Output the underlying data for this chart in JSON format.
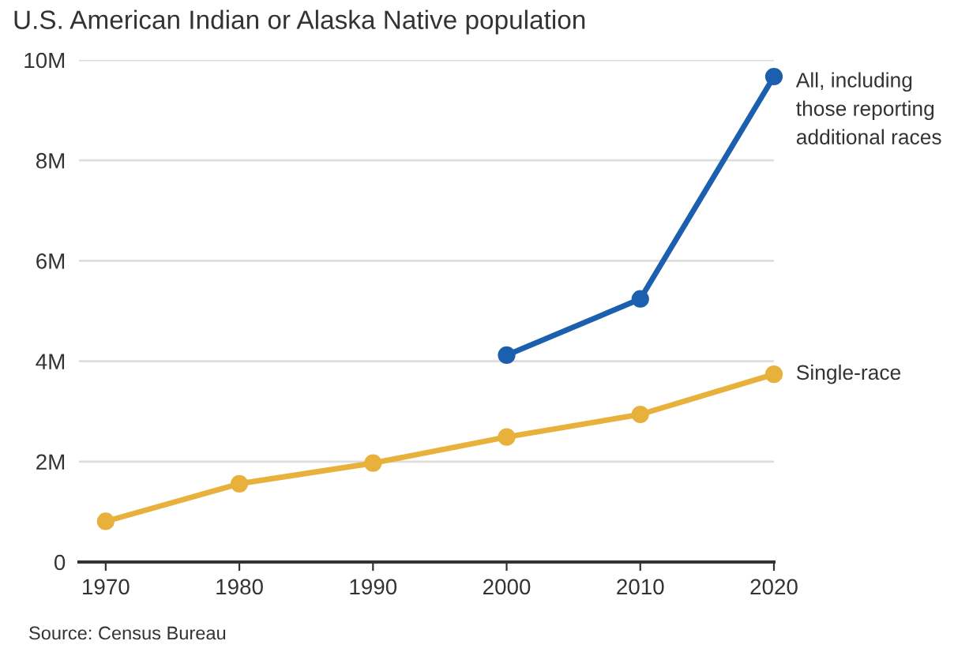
{
  "chart_data": {
    "type": "line",
    "title": "U.S. American Indian or Alaska Native population",
    "x": [
      1970,
      1980,
      1990,
      2000,
      2010,
      2020
    ],
    "series": [
      {
        "name": "All, including those reporting additional races",
        "color": "#1c5fae",
        "values": [
          null,
          null,
          null,
          4.12,
          5.24,
          9.67
        ]
      },
      {
        "name": "Single-race",
        "color": "#e8b13c",
        "values": [
          0.81,
          1.56,
          1.97,
          2.49,
          2.94,
          3.74
        ]
      }
    ],
    "xlim": [
      1968,
      2020
    ],
    "xticks": [
      1970,
      1980,
      1990,
      2000,
      2010,
      2020
    ],
    "ylim": [
      0,
      10
    ],
    "yticks": [
      0,
      {
        "value": 2,
        "label": "2M"
      },
      {
        "value": 4,
        "label": "4M"
      },
      {
        "value": 6,
        "label": "6M"
      },
      {
        "value": 8,
        "label": "8M"
      },
      {
        "value": 10,
        "label": "10M"
      }
    ],
    "grid": "y",
    "legend": false,
    "marker": "circle",
    "line_style": "solid",
    "annotations": [
      "Source: Census Bureau"
    ]
  }
}
